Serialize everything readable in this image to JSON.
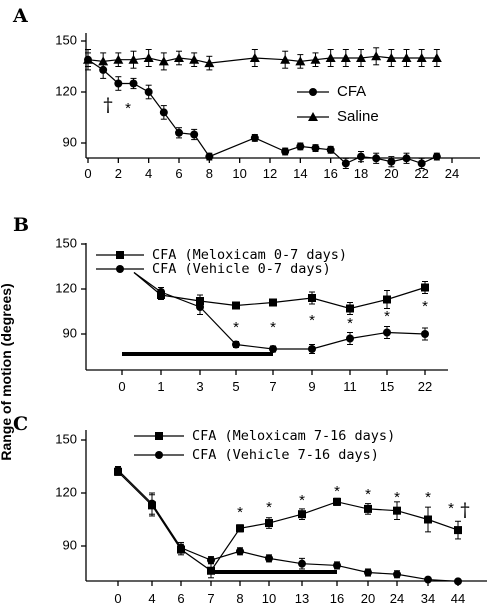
{
  "y_axis_label": "Range of motion (degrees)",
  "chart_data": [
    {
      "panel": "A",
      "type": "line",
      "x": [
        0,
        1,
        2,
        3,
        4,
        5,
        6,
        7,
        8,
        11,
        13,
        14,
        15,
        16,
        17,
        18,
        19,
        20,
        21,
        22,
        23
      ],
      "xticks": [
        0,
        2,
        4,
        6,
        8,
        10,
        12,
        14,
        16,
        18,
        20,
        22,
        24
      ],
      "yticks": [
        90,
        120,
        150
      ],
      "xlim": [
        0,
        24
      ],
      "ylim": [
        75,
        155
      ],
      "legend_position": "right",
      "series": [
        {
          "name": "CFA",
          "marker": "circle",
          "x": [
            0,
            1,
            2,
            3,
            4,
            5,
            6,
            7,
            8,
            11,
            13,
            14,
            15,
            16,
            17,
            18,
            19,
            20,
            21,
            22,
            23
          ],
          "values": [
            139,
            133,
            125,
            125,
            120,
            108,
            96,
            95,
            82,
            93,
            85,
            88,
            87,
            86,
            78,
            82,
            81,
            79,
            81,
            78,
            82
          ],
          "errors": [
            4,
            5,
            4,
            3,
            4,
            4,
            3,
            3,
            2,
            2,
            2,
            2,
            2,
            2,
            3,
            3,
            3,
            3,
            3,
            3,
            2
          ]
        },
        {
          "name": "Saline",
          "marker": "triangle",
          "x": [
            0,
            1,
            2,
            3,
            4,
            5,
            6,
            7,
            8,
            11,
            13,
            14,
            15,
            16,
            17,
            18,
            19,
            20,
            21,
            22,
            23
          ],
          "values": [
            139,
            138,
            139,
            139,
            140,
            138,
            140,
            139,
            137,
            140,
            139,
            138,
            139,
            140,
            140,
            140,
            141,
            140,
            140,
            140,
            140
          ],
          "errors": [
            6,
            5,
            4,
            5,
            5,
            5,
            4,
            4,
            4,
            5,
            5,
            4,
            4,
            5,
            5,
            5,
            5,
            5,
            5,
            5,
            5
          ]
        }
      ],
      "annotations": [
        {
          "text": "†",
          "at_x": 1
        },
        {
          "text": "*",
          "at_x": 3
        }
      ]
    },
    {
      "panel": "B",
      "type": "line",
      "categories": [
        "0",
        "1",
        "3",
        "5",
        "7",
        "9",
        "11",
        "15",
        "22"
      ],
      "yticks": [
        90,
        120,
        150
      ],
      "ylim": [
        75,
        150
      ],
      "legend_position": "top",
      "series": [
        {
          "name": "CFA (Meloxicam 0-7 days)",
          "marker": "square",
          "values": [
            null,
            116,
            112,
            109,
            111,
            114,
            107,
            113,
            121
          ],
          "errors": [
            null,
            3,
            4,
            2,
            2,
            4,
            4,
            6,
            4
          ]
        },
        {
          "name": "CFA (Vehicle 0-7 days)",
          "marker": "circle",
          "values": [
            null,
            118,
            108,
            83,
            80,
            80,
            87,
            91,
            90
          ],
          "errors": [
            null,
            3,
            5,
            2,
            2,
            3,
            4,
            4,
            4
          ]
        }
      ],
      "initial_segment": {
        "from_category": "0",
        "value": 131
      },
      "treatment_bar": {
        "from_category": "0",
        "to_category": "7"
      },
      "significance_marks": [
        "5",
        "7",
        "9",
        "11",
        "15",
        "22"
      ],
      "significance_symbol": "*"
    },
    {
      "panel": "C",
      "type": "line",
      "categories": [
        "0",
        "4",
        "6",
        "7",
        "8",
        "10",
        "13",
        "16",
        "20",
        "24",
        "34",
        "44"
      ],
      "yticks": [
        90,
        120,
        150
      ],
      "ylim": [
        68,
        150
      ],
      "legend_position": "top",
      "series": [
        {
          "name": "CFA (Meloxicam 7-16 days)",
          "marker": "square",
          "values": [
            132,
            113,
            88,
            76,
            100,
            103,
            108,
            115,
            111,
            110,
            105,
            99
          ],
          "errors": [
            2,
            6,
            3,
            4,
            2,
            3,
            3,
            2,
            3,
            5,
            7,
            5
          ]
        },
        {
          "name": "CFA (Vehicle 7-16 days)",
          "marker": "circle",
          "values": [
            133,
            114,
            89,
            82,
            87,
            83,
            80,
            79,
            75,
            74,
            71,
            70
          ],
          "errors": [
            2,
            6,
            3,
            2,
            2,
            2,
            3,
            2,
            2,
            2,
            1,
            1
          ]
        }
      ],
      "treatment_bar": {
        "from_category": "7",
        "to_category": "16"
      },
      "significance_marks": [
        "8",
        "10",
        "13",
        "16",
        "20",
        "24",
        "34",
        "44"
      ],
      "significance_symbol": "*",
      "dagger_mark": {
        "text": "†",
        "at_category": "44"
      }
    }
  ]
}
